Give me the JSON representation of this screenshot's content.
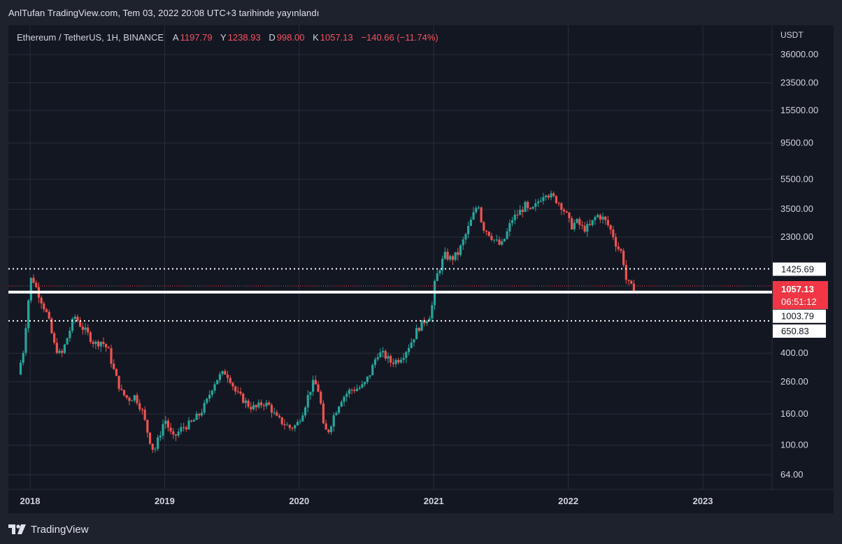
{
  "header": {
    "publish_text": "AnlTufan TradingView.com, Tem 03, 2022 20:08 UTC+3 tarihinde yayınlandı"
  },
  "legend": {
    "symbol": "Ethereum / TetherUS, 1H, BINANCE",
    "open_label": "A",
    "open_value": "1197.79",
    "high_label": "Y",
    "high_value": "1238.93",
    "low_label": "D",
    "low_value": "998.00",
    "close_label": "K",
    "close_value": "1057.13",
    "change": "−140.66 (−11.74%)"
  },
  "footer": {
    "brand": "TradingView"
  },
  "colors": {
    "up": "#26a69a",
    "down": "#ef5350",
    "background": "#131722",
    "frame": "#1e222d",
    "price_badge": "#f23645"
  },
  "chart_data": {
    "type": "candlestick",
    "currency": "USDT",
    "scale": "log",
    "ylim": [
      52,
      52000
    ],
    "y_ticks": [
      "36000.00",
      "23500.00",
      "15500.00",
      "9500.00",
      "5500.00",
      "3500.00",
      "2300.00",
      "400.00",
      "260.00",
      "160.00",
      "100.00",
      "64.00"
    ],
    "x_ticks": [
      "2018",
      "2019",
      "2020",
      "2021",
      "2022",
      "2023"
    ],
    "x_range": [
      2017.93,
      2023.6
    ],
    "horizontal_lines": [
      {
        "label": "1425.69",
        "value": 1425.69,
        "style": "dotted"
      },
      {
        "label": "1003.79",
        "value": 1003.79,
        "style": "solid"
      },
      {
        "label": "650.83",
        "value": 650.83,
        "style": "dotted"
      }
    ],
    "last_price": {
      "value": "1057.13",
      "countdown": "06:51:12"
    },
    "anchors": [
      [
        2017.93,
        290
      ],
      [
        2017.97,
        420
      ],
      [
        2018.0,
        800
      ],
      [
        2018.03,
        1300
      ],
      [
        2018.06,
        1100
      ],
      [
        2018.1,
        900
      ],
      [
        2018.15,
        700
      ],
      [
        2018.2,
        450
      ],
      [
        2018.25,
        380
      ],
      [
        2018.3,
        520
      ],
      [
        2018.35,
        700
      ],
      [
        2018.4,
        600
      ],
      [
        2018.45,
        530
      ],
      [
        2018.5,
        460
      ],
      [
        2018.55,
        480
      ],
      [
        2018.6,
        420
      ],
      [
        2018.65,
        290
      ],
      [
        2018.7,
        220
      ],
      [
        2018.75,
        200
      ],
      [
        2018.8,
        210
      ],
      [
        2018.85,
        170
      ],
      [
        2018.9,
        115
      ],
      [
        2018.94,
        90
      ],
      [
        2018.98,
        115
      ],
      [
        2019.02,
        150
      ],
      [
        2019.08,
        110
      ],
      [
        2019.15,
        130
      ],
      [
        2019.22,
        140
      ],
      [
        2019.28,
        160
      ],
      [
        2019.33,
        190
      ],
      [
        2019.38,
        250
      ],
      [
        2019.42,
        280
      ],
      [
        2019.47,
        300
      ],
      [
        2019.5,
        280
      ],
      [
        2019.55,
        220
      ],
      [
        2019.6,
        200
      ],
      [
        2019.65,
        180
      ],
      [
        2019.7,
        175
      ],
      [
        2019.75,
        190
      ],
      [
        2019.8,
        180
      ],
      [
        2019.85,
        150
      ],
      [
        2019.9,
        140
      ],
      [
        2019.95,
        130
      ],
      [
        2020.0,
        135
      ],
      [
        2020.05,
        170
      ],
      [
        2020.1,
        230
      ],
      [
        2020.13,
        260
      ],
      [
        2020.17,
        220
      ],
      [
        2020.2,
        130
      ],
      [
        2020.23,
        120
      ],
      [
        2020.28,
        160
      ],
      [
        2020.33,
        200
      ],
      [
        2020.4,
        230
      ],
      [
        2020.45,
        235
      ],
      [
        2020.5,
        245
      ],
      [
        2020.55,
        300
      ],
      [
        2020.6,
        400
      ],
      [
        2020.65,
        390
      ],
      [
        2020.7,
        350
      ],
      [
        2020.75,
        360
      ],
      [
        2020.8,
        400
      ],
      [
        2020.85,
        470
      ],
      [
        2020.9,
        580
      ],
      [
        2020.95,
        650
      ],
      [
        2021.0,
        730
      ],
      [
        2021.03,
        1200
      ],
      [
        2021.07,
        1500
      ],
      [
        2021.1,
        1750
      ],
      [
        2021.15,
        1650
      ],
      [
        2021.2,
        1800
      ],
      [
        2021.25,
        2300
      ],
      [
        2021.3,
        3000
      ],
      [
        2021.35,
        3900
      ],
      [
        2021.38,
        2700
      ],
      [
        2021.42,
        2500
      ],
      [
        2021.47,
        2200
      ],
      [
        2021.52,
        2000
      ],
      [
        2021.56,
        2400
      ],
      [
        2021.6,
        3000
      ],
      [
        2021.65,
        3300
      ],
      [
        2021.7,
        3700
      ],
      [
        2021.73,
        3300
      ],
      [
        2021.77,
        3600
      ],
      [
        2021.8,
        4000
      ],
      [
        2021.85,
        4600
      ],
      [
        2021.88,
        4300
      ],
      [
        2021.92,
        4100
      ],
      [
        2021.96,
        3800
      ],
      [
        2022.0,
        3300
      ],
      [
        2022.04,
        2700
      ],
      [
        2022.08,
        2900
      ],
      [
        2022.13,
        2600
      ],
      [
        2022.18,
        2700
      ],
      [
        2022.23,
        3200
      ],
      [
        2022.27,
        3100
      ],
      [
        2022.31,
        2800
      ],
      [
        2022.35,
        2400
      ],
      [
        2022.38,
        2000
      ],
      [
        2022.42,
        1800
      ],
      [
        2022.45,
        1200
      ],
      [
        2022.48,
        1090
      ],
      [
        2022.5,
        1057
      ]
    ]
  }
}
